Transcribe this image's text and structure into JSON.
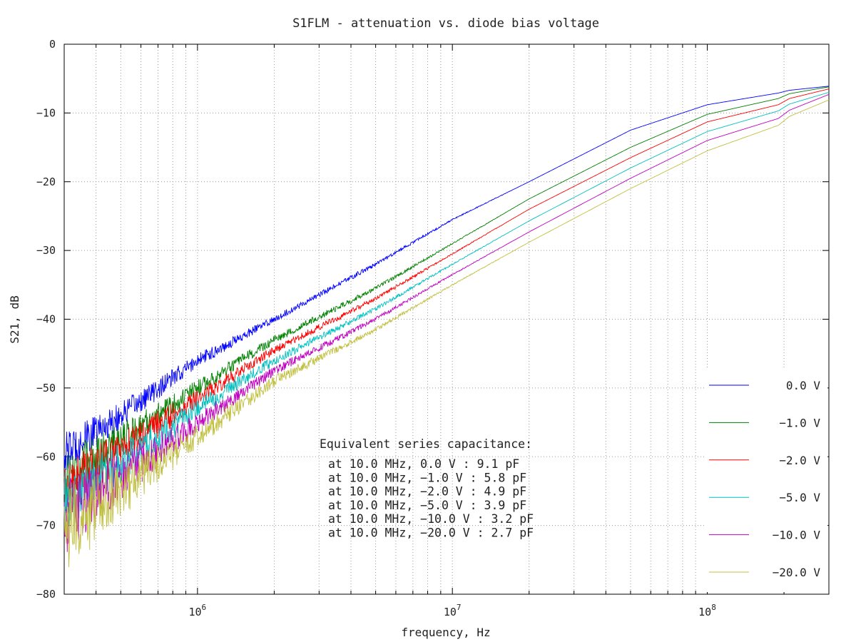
{
  "chart_data": {
    "type": "line",
    "title": "S1FLM - attenuation vs. diode bias voltage",
    "xlabel": "frequency, Hz",
    "ylabel": "S21, dB",
    "xscale": "log",
    "xlim": [
      300000,
      300000000
    ],
    "ylim": [
      -80,
      0
    ],
    "grid": true,
    "legend_position": "bottom-right",
    "x_ticks": [
      {
        "value": 1000000,
        "base": "10",
        "exp": "6"
      },
      {
        "value": 10000000,
        "base": "10",
        "exp": "7"
      },
      {
        "value": 100000000,
        "base": "10",
        "exp": "8"
      }
    ],
    "y_ticks": [
      {
        "value": 0,
        "label": "0"
      },
      {
        "value": -10,
        "label": "−10"
      },
      {
        "value": -20,
        "label": "−20"
      },
      {
        "value": -30,
        "label": "−30"
      },
      {
        "value": -40,
        "label": "−40"
      },
      {
        "value": -50,
        "label": "−50"
      },
      {
        "value": -60,
        "label": "−60"
      },
      {
        "value": -70,
        "label": "−70"
      },
      {
        "value": -80,
        "label": "−80"
      }
    ],
    "x": [
      300000,
      500000,
      1000000,
      2000000,
      5000000,
      10000000,
      20000000,
      50000000,
      100000000,
      190000000,
      210000000,
      300000000
    ],
    "series": [
      {
        "name": "0.0 V",
        "label": "0.0 V",
        "color": "#0000ff",
        "noise": [
          3.0,
          2.0,
          1.0,
          0.5,
          0.3,
          0.1,
          0,
          0,
          0,
          0,
          0,
          0
        ],
        "values": [
          -59.5,
          -54,
          -46,
          -40,
          -32,
          -25.5,
          -20,
          -12.5,
          -8.8,
          -7.1,
          -6.7,
          -6.1
        ]
      },
      {
        "name": "-1.0 V",
        "label": "−1.0 V",
        "color": "#008000",
        "noise": [
          4.0,
          2.5,
          1.2,
          0.6,
          0.3,
          0.1,
          0,
          0,
          0,
          0,
          0,
          0
        ],
        "values": [
          -63,
          -57.5,
          -50,
          -43,
          -35.5,
          -29,
          -22.5,
          -15,
          -10.2,
          -7.9,
          -7.2,
          -6.2
        ]
      },
      {
        "name": "-2.0 V",
        "label": "−2.0 V",
        "color": "#ff0000",
        "noise": [
          4.5,
          2.8,
          1.3,
          0.6,
          0.3,
          0.1,
          0,
          0,
          0,
          0,
          0,
          0
        ],
        "values": [
          -65,
          -59,
          -51.5,
          -44.5,
          -37,
          -30.5,
          -24,
          -16.5,
          -11.3,
          -8.8,
          -7.9,
          -6.5
        ]
      },
      {
        "name": "-5.0 V",
        "label": "−5.0 V",
        "color": "#00c0c0",
        "noise": [
          5.0,
          3.0,
          1.4,
          0.7,
          0.3,
          0.1,
          0,
          0,
          0,
          0,
          0,
          0
        ],
        "values": [
          -67,
          -61,
          -53,
          -46,
          -38.5,
          -32,
          -25.7,
          -18,
          -12.7,
          -9.7,
          -8.7,
          -7.0
        ]
      },
      {
        "name": "-10.0 V",
        "label": "−10.0 V",
        "color": "#c000c0",
        "noise": [
          5.5,
          3.5,
          1.5,
          0.7,
          0.3,
          0.1,
          0,
          0,
          0,
          0,
          0,
          0
        ],
        "values": [
          -69,
          -63,
          -55,
          -47.5,
          -40,
          -33.5,
          -27.3,
          -19.5,
          -14,
          -10.8,
          -9.6,
          -7.3
        ]
      },
      {
        "name": "-20.0 V",
        "label": "−20.0 V",
        "color": "#c0c040",
        "noise": [
          6.5,
          4.0,
          1.7,
          0.8,
          0.3,
          0.1,
          0,
          0,
          0,
          0,
          0,
          0
        ],
        "values": [
          -71,
          -65,
          -57,
          -49,
          -41.5,
          -35,
          -28.8,
          -21,
          -15.5,
          -11.8,
          -10.5,
          -8.1
        ]
      }
    ],
    "annotation": {
      "title": "Equivalent series capacitance:",
      "lines": [
        "at 10.0 MHz, 0.0 V : 9.1 pF",
        "at 10.0 MHz, −1.0 V : 5.8 pF",
        "at 10.0 MHz, −2.0 V : 4.9 pF",
        "at 10.0 MHz, −5.0 V : 3.9 pF",
        "at 10.0 MHz, −10.0 V : 3.2 pF",
        "at 10.0 MHz, −20.0 V : 2.7 pF"
      ]
    }
  }
}
